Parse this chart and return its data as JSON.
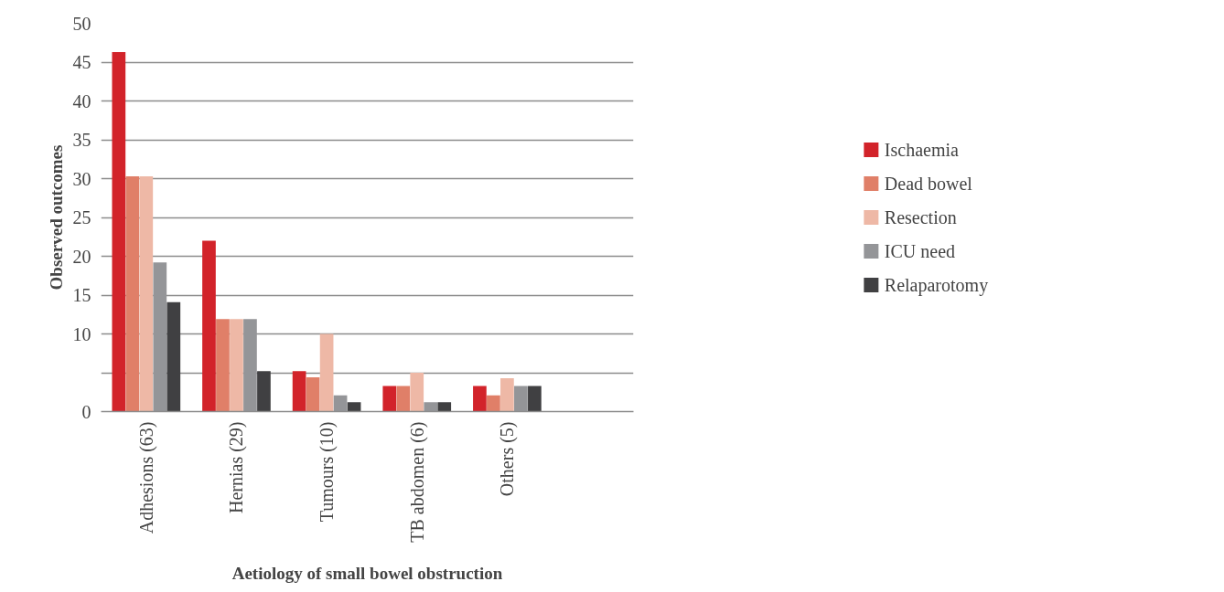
{
  "chart_data": {
    "type": "bar",
    "xlabel": "Aetiology of small bowel obstruction",
    "ylabel": "Observed outcomes",
    "categories": [
      "Adhesions (63)",
      "Hernias (29)",
      "Tumours (10)",
      "TB abdomen (6)",
      "Others (5)"
    ],
    "series": [
      {
        "name": "Ischaemia",
        "color": "#d2232a",
        "values": [
          46.3,
          22,
          5.2,
          3.3,
          3.3
        ]
      },
      {
        "name": "Dead bowel",
        "color": "#e07f68",
        "values": [
          30.3,
          11.9,
          4.4,
          3.3,
          2.1
        ]
      },
      {
        "name": "Resection",
        "color": "#eeb8a6",
        "values": [
          30.3,
          11.9,
          10,
          5,
          4.3
        ]
      },
      {
        "name": "ICU need",
        "color": "#949598",
        "values": [
          19.2,
          11.9,
          2.1,
          1.2,
          3.3
        ]
      },
      {
        "name": "Relaparotomy",
        "color": "#404042",
        "values": [
          14.1,
          5.2,
          1.2,
          1.2,
          3.3
        ]
      }
    ],
    "ylim": [
      0,
      50
    ],
    "yticks": [
      0,
      {
        "value": 5,
        "label": null
      },
      10,
      15,
      20,
      25,
      30,
      35,
      40,
      45,
      50
    ],
    "grid": "y",
    "legend": "right"
  }
}
